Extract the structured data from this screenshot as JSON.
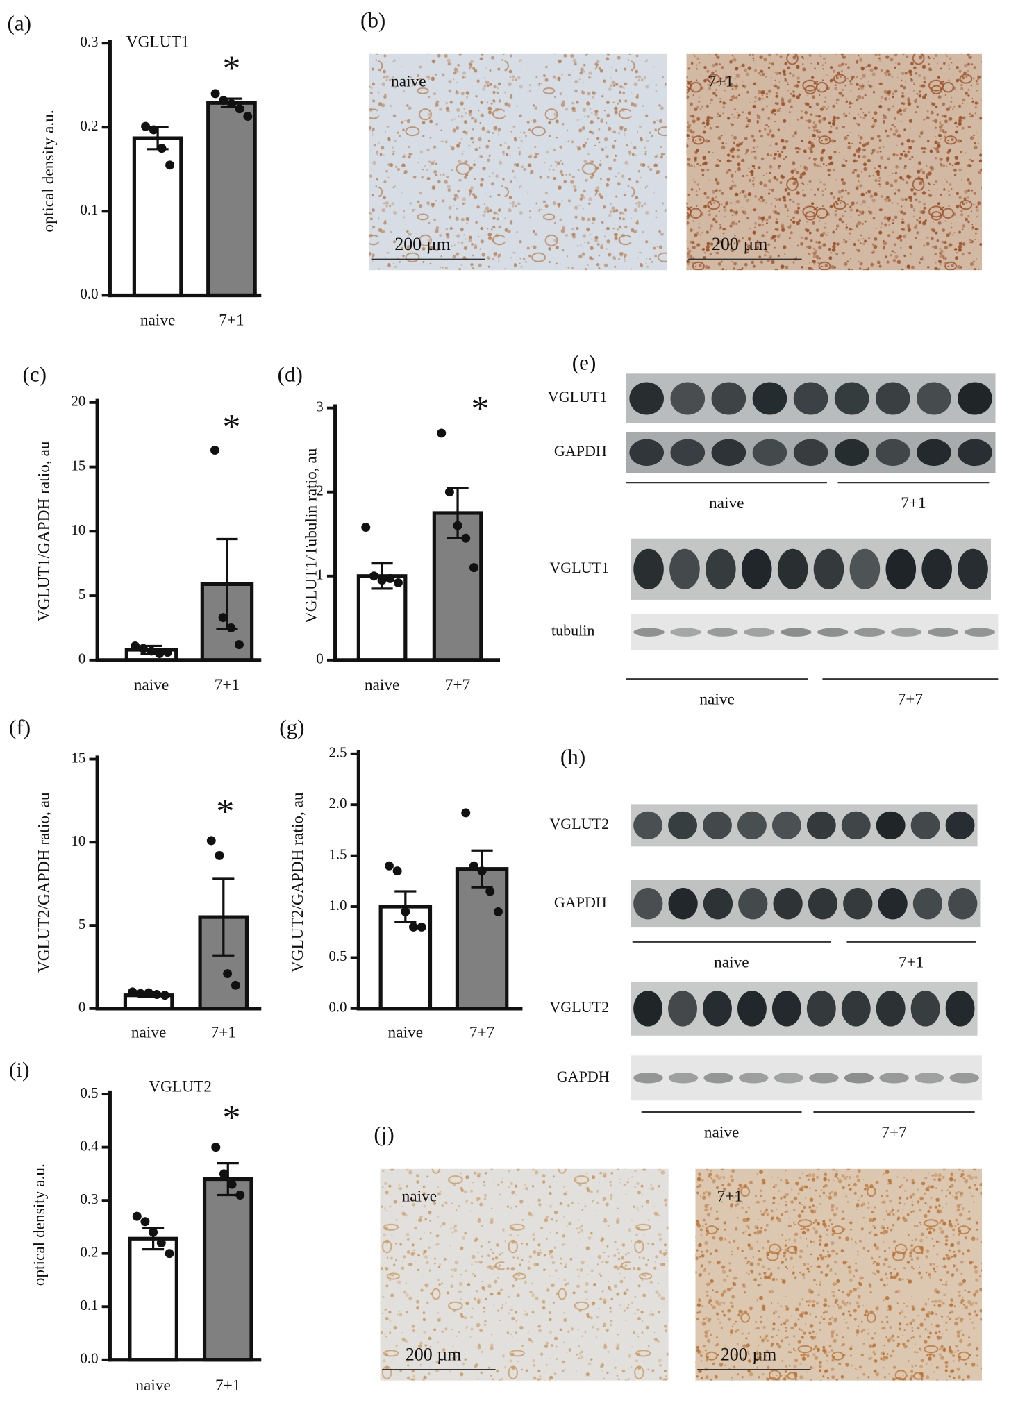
{
  "chart_data": [
    {
      "type": "bar",
      "panel_label": "(a)",
      "title": "VGLUT1",
      "y_label": "optical density a.u.",
      "annotation": "*",
      "categories": [
        "naive",
        "7+1"
      ],
      "values": [
        0.187,
        0.229
      ],
      "errors": [
        0.013,
        0.005
      ],
      "points": [
        [
          0.201,
          0.197,
          0.175,
          0.155
        ],
        [
          0.24,
          0.232,
          0.228,
          0.222,
          0.213
        ]
      ],
      "colors": [
        "#ffffff",
        "#808080"
      ],
      "ylim": [
        0,
        0.3
      ],
      "yticks": [
        {
          "value": 0,
          "label": "0.0"
        },
        0.1,
        0.2,
        0.3
      ]
    },
    {
      "type": "bar",
      "panel_label": "(c)",
      "y_label": "VGLUT1/GAPDH ratio, au",
      "annotation": "*",
      "categories": [
        "naive",
        "7+1"
      ],
      "values": [
        0.8,
        5.9
      ],
      "errors": [
        0.3,
        3.5
      ],
      "points": [
        [
          1.1,
          0.9,
          0.7,
          0.5,
          0.6
        ],
        [
          16.3,
          3.3,
          2.5,
          1.2
        ]
      ],
      "colors": [
        "#ffffff",
        "#808080"
      ],
      "ylim": [
        0,
        20
      ],
      "yticks": [
        0,
        5,
        10,
        15,
        20
      ]
    },
    {
      "type": "bar",
      "panel_label": "(d)",
      "y_label": "VGLUT1/Tubulin ratio, au",
      "annotation": "*",
      "categories": [
        "naive",
        "7+7"
      ],
      "values": [
        1.0,
        1.75
      ],
      "errors": [
        0.15,
        0.3
      ],
      "points": [
        [
          1.58,
          1.0,
          0.95,
          0.97,
          0.92
        ],
        [
          2.7,
          2.0,
          1.6,
          1.45,
          1.1
        ]
      ],
      "colors": [
        "#ffffff",
        "#808080"
      ],
      "ylim": [
        0,
        3
      ],
      "yticks": [
        0,
        1,
        2,
        3
      ]
    },
    {
      "type": "bar",
      "panel_label": "(f)",
      "y_label": "VGLUT2/GAPDH ratio, au",
      "annotation": "*",
      "categories": [
        "naive",
        "7+1"
      ],
      "values": [
        0.8,
        5.5
      ],
      "errors": [
        0.1,
        2.3
      ],
      "points": [
        [
          1.0,
          0.9,
          0.95,
          0.85,
          0.8
        ],
        [
          10.1,
          9.2,
          2.1,
          1.4
        ]
      ],
      "colors": [
        "#ffffff",
        "#808080"
      ],
      "ylim": [
        0,
        15
      ],
      "yticks": [
        0,
        5,
        10,
        15
      ]
    },
    {
      "type": "bar",
      "panel_label": "(g)",
      "y_label": "VGLUT2/GAPDH ratio, au",
      "categories": [
        "naive",
        "7+7"
      ],
      "values": [
        1.0,
        1.37
      ],
      "errors": [
        0.15,
        0.18
      ],
      "points": [
        [
          1.4,
          1.35,
          0.95,
          0.8,
          0.8
        ],
        [
          1.92,
          1.4,
          1.35,
          1.15,
          0.95
        ]
      ],
      "colors": [
        "#ffffff",
        "#808080"
      ],
      "ylim": [
        0,
        2.5
      ],
      "yticks": [
        {
          "value": 0,
          "label": "0.0"
        },
        0.5,
        {
          "value": 1,
          "label": "1.0"
        },
        1.5,
        {
          "value": 2,
          "label": "2.0"
        },
        2.5
      ]
    },
    {
      "type": "bar",
      "panel_label": "(i)",
      "title": "VGLUT2",
      "y_label": "optical density a.u.",
      "annotation": "*",
      "categories": [
        "naive",
        "7+1"
      ],
      "values": [
        0.228,
        0.34
      ],
      "errors": [
        0.02,
        0.03
      ],
      "points": [
        [
          0.27,
          0.26,
          0.24,
          0.22,
          0.2
        ],
        [
          0.4,
          0.35,
          0.33,
          0.31
        ]
      ],
      "colors": [
        "#ffffff",
        "#808080"
      ],
      "ylim": [
        0,
        0.5
      ],
      "yticks": [
        {
          "value": 0,
          "label": "0.0"
        },
        0.1,
        0.2,
        0.3,
        0.4,
        0.5
      ]
    }
  ],
  "panels": {
    "b": {
      "label": "(b)",
      "images": [
        {
          "label": "naive",
          "scale_bar": "200 µm"
        },
        {
          "label": "7+1",
          "scale_bar": "200 µm"
        }
      ]
    },
    "e": {
      "label": "(e)",
      "blots": [
        {
          "rows": [
            "VGLUT1",
            "GAPDH"
          ],
          "groups": [
            "naive",
            "7+1"
          ]
        },
        {
          "rows": [
            "VGLUT1",
            "tubulin"
          ],
          "groups": [
            "naive",
            "7+7"
          ]
        }
      ]
    },
    "h": {
      "label": "(h)",
      "blots": [
        {
          "rows": [
            "VGLUT2",
            "GAPDH"
          ],
          "groups": [
            "naive",
            "7+1"
          ]
        },
        {
          "rows": [
            "VGLUT2",
            "GAPDH"
          ],
          "groups": [
            "naive",
            "7+7"
          ]
        }
      ]
    },
    "j": {
      "label": "(j)",
      "images": [
        {
          "label": "naive",
          "scale_bar": "200 µm"
        },
        {
          "label": "7+1",
          "scale_bar": "200 µm"
        }
      ]
    }
  }
}
